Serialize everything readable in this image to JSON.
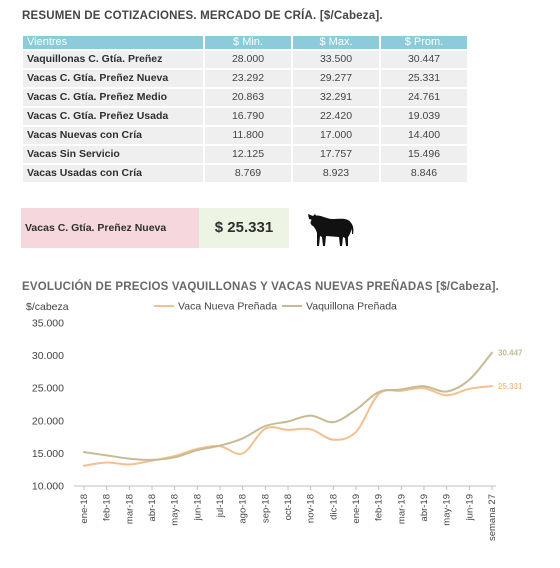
{
  "table_title": "RESUMEN DE COTIZACIONES. MERCADO DE CRÍA. [$/Cabeza].",
  "table": {
    "headers": [
      "Vientres",
      "$ Min.",
      "$ Max.",
      "$ Prom."
    ],
    "rows": [
      [
        "Vaquillonas C. Gtía. Preñez",
        "28.000",
        "33.500",
        "30.447"
      ],
      [
        "Vacas C. Gtía. Preñez Nueva",
        "23.292",
        "29.277",
        "25.331"
      ],
      [
        "Vacas C. Gtía. Preñez Medio",
        "20.863",
        "32.291",
        "24.761"
      ],
      [
        "Vacas C. Gtía. Preñez Usada",
        "16.790",
        "22.420",
        "19.039"
      ],
      [
        "Vacas Nuevas con Cría",
        "11.800",
        "17.000",
        "14.400"
      ],
      [
        "Vacas Sin Servicio",
        "12.125",
        "17.757",
        "15.496"
      ],
      [
        "Vacas Usadas con Cría",
        "8.769",
        "8.923",
        "8.846"
      ]
    ]
  },
  "highlight": {
    "label": "Vacas C. Gtía. Preñez Nueva",
    "value": "$ 25.331",
    "icon": "cow-icon"
  },
  "chart_title": "EVOLUCIÓN DE PRECIOS VAQUILLONAS Y VACAS NUEVAS PREÑADAS [$/Cabeza].",
  "chart_data": {
    "type": "line",
    "title": "EVOLUCIÓN DE PRECIOS VAQUILLONAS Y VACAS NUEVAS PREÑADAS [$/Cabeza].",
    "ylabel": "$/cabeza",
    "xlabel": "",
    "ylim": [
      10000,
      35000
    ],
    "yticks": [
      10000,
      15000,
      20000,
      25000,
      30000,
      35000
    ],
    "ytick_labels": [
      "10.000",
      "15.000",
      "20.000",
      "25.000",
      "30.000",
      "35.000"
    ],
    "grid": false,
    "legend": "top-center",
    "categories": [
      "ene-18",
      "feb-18",
      "mar-18",
      "abr-18",
      "may-18",
      "jun-18",
      "jul-18",
      "ago-18",
      "sep-18",
      "oct-18",
      "nov-18",
      "dic-18",
      "ene-19",
      "feb-19",
      "mar-19",
      "abr-19",
      "may-19",
      "jun-19",
      "semana 27"
    ],
    "series": [
      {
        "name": "Vaca Nueva Preñada",
        "color": "#f4c08e",
        "values": [
          13100,
          13600,
          13300,
          13900,
          14600,
          15700,
          16100,
          15000,
          18800,
          18600,
          18700,
          17100,
          18300,
          24100,
          24600,
          25000,
          23900,
          24900,
          25331
        ],
        "end_label": "25.331"
      },
      {
        "name": "Vaquillona Preñada",
        "color": "#c6bb93",
        "values": [
          15200,
          14700,
          14200,
          14000,
          14400,
          15500,
          16200,
          17300,
          19200,
          19900,
          20800,
          19800,
          21700,
          24400,
          24800,
          25300,
          24500,
          26300,
          30447
        ],
        "end_label": "30.447"
      }
    ]
  }
}
